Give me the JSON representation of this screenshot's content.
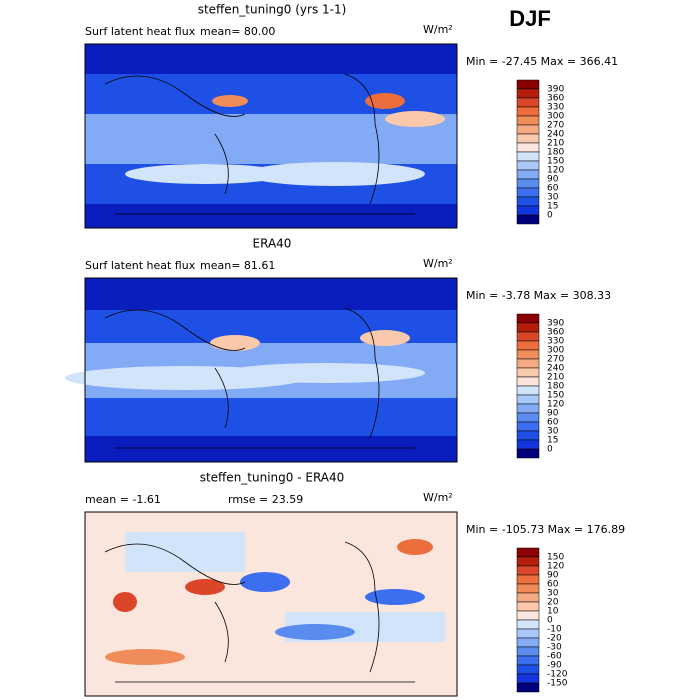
{
  "season": "DJF",
  "panels": [
    {
      "title": "steffen_tuning0 (yrs 1-1)",
      "left_text": "Surf latent heat flux",
      "mean_text": "mean=  80.00",
      "units": "W/m²",
      "minmax": "Min = -27.45 Max = 366.41",
      "colorbar": {
        "labels": [
          390,
          360,
          330,
          300,
          270,
          240,
          210,
          180,
          150,
          120,
          90,
          60,
          30,
          15,
          0
        ],
        "colors": [
          "#8b0000",
          "#b41e0a",
          "#dc4628",
          "#eb6e3c",
          "#f08c5a",
          "#f5aa82",
          "#fac8aa",
          "#fae6dc",
          "#d2e4fa",
          "#aac8fa",
          "#82aaf5",
          "#5a8cf0",
          "#3c6ef0",
          "#1e50e6",
          "#1236dc",
          "#00007f"
        ]
      }
    },
    {
      "title": "ERA40",
      "left_text": "Surf latent heat flux",
      "mean_text": "mean=  81.61",
      "units": "W/m²",
      "minmax": "Min = -3.78 Max = 308.33",
      "colorbar": {
        "labels": [
          390,
          360,
          330,
          300,
          270,
          240,
          210,
          180,
          150,
          120,
          90,
          60,
          30,
          15,
          0
        ],
        "colors": [
          "#8b0000",
          "#b41e0a",
          "#dc4628",
          "#eb6e3c",
          "#f08c5a",
          "#f5aa82",
          "#fac8aa",
          "#fae6dc",
          "#d2e4fa",
          "#aac8fa",
          "#82aaf5",
          "#5a8cf0",
          "#3c6ef0",
          "#1e50e6",
          "#1236dc",
          "#00007f"
        ]
      }
    },
    {
      "title": "steffen_tuning0 - ERA40",
      "left_text": "mean =  -1.61",
      "mean_text": "rmse =  23.59",
      "units": "W/m²",
      "minmax": "Min = -105.73 Max = 176.89",
      "colorbar": {
        "labels": [
          150,
          120,
          90,
          60,
          30,
          20,
          10,
          0,
          -10,
          -20,
          -30,
          -60,
          -90,
          -120,
          -150
        ],
        "colors": [
          "#8b0000",
          "#b41e0a",
          "#dc4628",
          "#eb6e3c",
          "#f08c5a",
          "#f5aa82",
          "#fac8aa",
          "#fae6dc",
          "#d2e4fa",
          "#aac8fa",
          "#82aaf5",
          "#5a8cf0",
          "#3c6ef0",
          "#1e50e6",
          "#1236dc",
          "#00007f"
        ]
      }
    }
  ]
}
